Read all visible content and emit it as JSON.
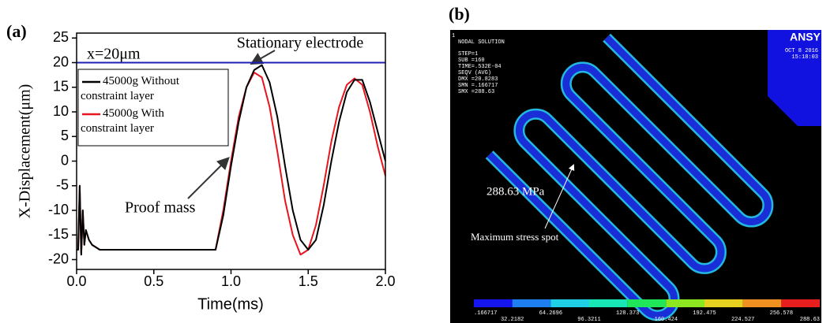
{
  "chart_data": {
    "type": "line",
    "panel_label": "(a)",
    "x_label": "Time(ms)",
    "y_label": "X-Displacement(μm)",
    "x": [
      0,
      0.01,
      0.02,
      0.025,
      0.03,
      0.04,
      0.05,
      0.06,
      0.08,
      0.1,
      0.15,
      0.2,
      0.4,
      0.6,
      0.9,
      0.95,
      1.0,
      1.05,
      1.1,
      1.15,
      1.2,
      1.25,
      1.3,
      1.35,
      1.4,
      1.45,
      1.5,
      1.55,
      1.6,
      1.65,
      1.7,
      1.75,
      1.8,
      1.85,
      1.9,
      1.95,
      2.0
    ],
    "series": [
      {
        "name": "45000g Without constraint layer",
        "color": "#000000",
        "values": [
          -18,
          -18,
          -5,
          -12,
          -19,
          -10,
          -17,
          -14,
          -16,
          -17,
          -18,
          -18,
          -18,
          -18,
          -18,
          -11,
          -1,
          8,
          15,
          18.5,
          19.5,
          16,
          9,
          -1,
          -10,
          -16,
          -18,
          -16,
          -9,
          0,
          8,
          14,
          16.5,
          16.5,
          12,
          6,
          0
        ]
      },
      {
        "name": "45000g With constraint layer",
        "color": "#e8141e",
        "values": [
          -18,
          -18,
          -5,
          -12,
          -19,
          -10,
          -17,
          -14,
          -16,
          -17,
          -18,
          -18,
          -18,
          -18,
          -18,
          -10,
          0,
          9,
          15,
          18,
          17,
          11,
          2,
          -8,
          -15,
          -19,
          -18,
          -13,
          -5,
          4,
          11,
          15.5,
          16.8,
          15.5,
          10,
          3,
          -3
        ]
      }
    ],
    "reference_line": {
      "value": 20,
      "label": "x=20μm",
      "color": "#1f1fb4"
    },
    "annotations": [
      "Stationary electrode",
      "Proof mass"
    ],
    "xlim": [
      0,
      2
    ],
    "xticks": [
      {
        "value": 0,
        "label": "0.0"
      },
      0.5,
      {
        "value": 1,
        "label": "1.0"
      },
      1.5,
      {
        "value": 2,
        "label": "2.0"
      }
    ],
    "ylim": [
      -22,
      26
    ],
    "yticks": [
      -20,
      -15,
      -10,
      -5,
      0,
      5,
      10,
      15,
      20,
      25
    ],
    "legend": "upper left"
  },
  "panel_b": {
    "panel_label": "(b)",
    "index": "1",
    "header": "NODAL SOLUTION",
    "info": [
      "STEP=1",
      "SUB =160",
      "TIME=.532E-04",
      "SEQV     (AVG)",
      "DMX =20.8283",
      "SMN =.166717",
      "SMX =288.63"
    ],
    "logo": "ANSY",
    "date": "OCT  8 2016",
    "time": "15:18:03",
    "stress_label": "288.63 MPa",
    "spot_label": "Maximum stress spot",
    "colorbar_labels": [
      ".166717",
      "32.2182",
      "64.2696",
      "96.3211",
      "128.373",
      "160.424",
      "192.475",
      "224.527",
      "256.578",
      "288.63"
    ],
    "colorbar_colors": [
      "#1515f0",
      "#1e7ff0",
      "#1ecfe6",
      "#18e6b4",
      "#20e65a",
      "#8ce620",
      "#e6d020",
      "#f09020",
      "#e61e1e"
    ]
  }
}
